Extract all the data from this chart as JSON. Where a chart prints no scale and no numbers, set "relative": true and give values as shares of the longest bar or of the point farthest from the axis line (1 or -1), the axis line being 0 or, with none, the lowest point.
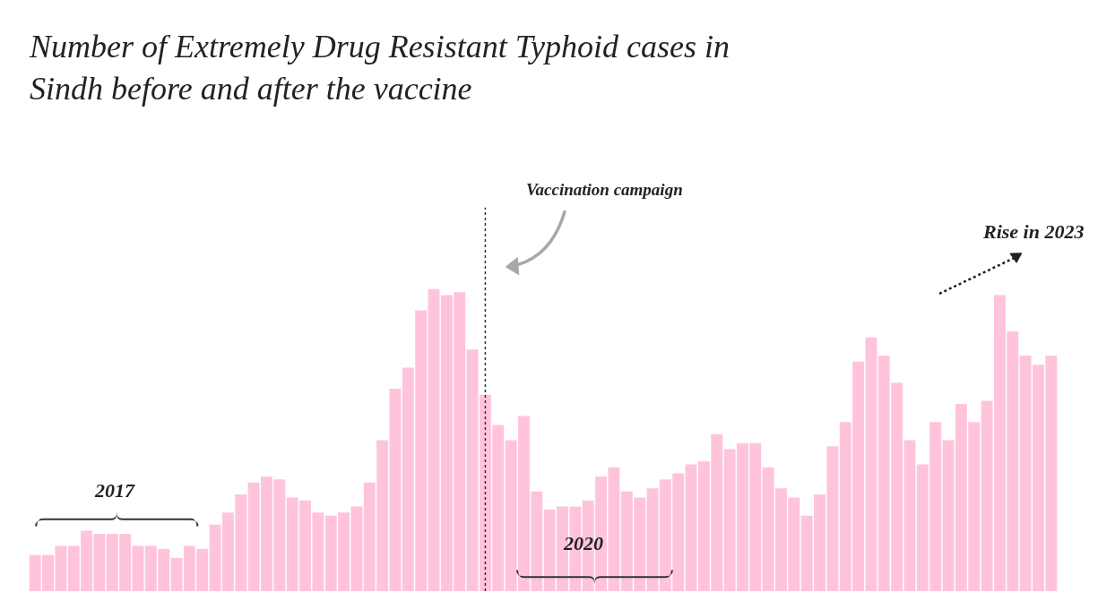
{
  "chart_data": {
    "type": "bar",
    "relative": true,
    "title": "Number of Extremely Drug Resistant Typhoid cases in\nSindh before and after the vaccine",
    "categories": [
      null,
      null,
      null,
      null,
      null,
      null,
      null,
      null,
      null,
      null,
      null,
      null,
      null,
      null,
      null,
      null,
      null,
      null,
      null,
      null,
      null,
      null,
      null,
      null,
      null,
      null,
      null,
      null,
      null,
      null,
      null,
      null,
      null,
      null,
      null,
      null,
      null,
      null,
      null,
      null,
      null,
      null,
      null,
      null,
      null,
      null,
      null,
      null,
      null,
      null,
      null,
      null,
      null,
      null,
      null,
      null,
      null,
      null,
      null,
      null,
      null,
      null,
      null,
      null,
      null,
      null,
      null,
      null,
      null,
      null,
      null,
      null,
      null,
      null,
      null,
      null,
      null,
      null,
      null,
      null
    ],
    "values": [
      0.12,
      0.12,
      0.15,
      0.15,
      0.2,
      0.19,
      0.19,
      0.19,
      0.15,
      0.15,
      0.14,
      0.11,
      0.15,
      0.14,
      0.22,
      0.26,
      0.32,
      0.36,
      0.38,
      0.37,
      0.31,
      0.3,
      0.26,
      0.25,
      0.26,
      0.28,
      0.36,
      0.5,
      0.67,
      0.74,
      0.93,
      1.0,
      0.98,
      0.99,
      0.8,
      0.65,
      0.55,
      0.5,
      0.58,
      0.33,
      0.27,
      0.28,
      0.28,
      0.3,
      0.38,
      0.41,
      0.33,
      0.31,
      0.34,
      0.37,
      0.39,
      0.42,
      0.43,
      0.52,
      0.47,
      0.49,
      0.49,
      0.41,
      0.34,
      0.31,
      0.25,
      0.32,
      0.48,
      0.56,
      0.76,
      0.84,
      0.78,
      0.69,
      0.5,
      0.42,
      0.56,
      0.5,
      0.62,
      0.56,
      0.63,
      0.98,
      0.86,
      0.78,
      0.75,
      0.78
    ],
    "color": "#ffc4dc",
    "annotations": [
      "Vaccination campaign",
      "2017",
      "2020",
      "Rise in 2023"
    ],
    "legend": false
  }
}
